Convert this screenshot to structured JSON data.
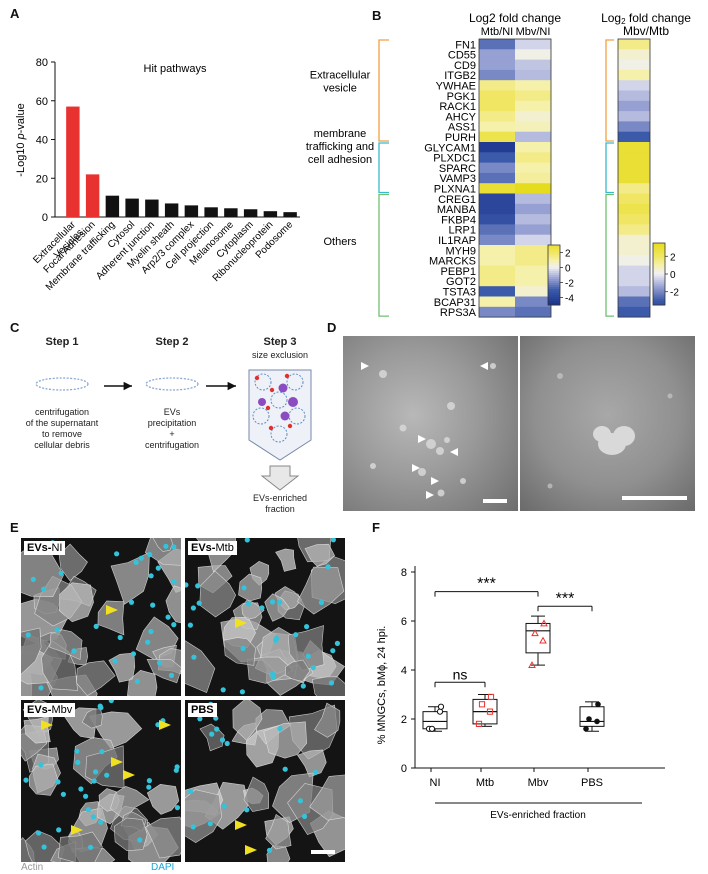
{
  "panels": {
    "A": "A",
    "B": "B",
    "C": "C",
    "D": "D",
    "E": "E",
    "F": "F"
  },
  "chart_a": {
    "type": "bar",
    "title": "Hit pathways",
    "ylabel_prefix": "-Log10 ",
    "ylabel_italic": "p",
    "ylabel_suffix": "-value",
    "ylim": [
      0,
      80
    ],
    "yticks": [
      "0",
      "20",
      "40",
      "60",
      "80"
    ],
    "categories": [
      "Extracellular Vesicles",
      "Focal Adhesion",
      "Membrane trafficking",
      "Cytosol",
      "Adherent junction",
      "Myelin sheath",
      "Arp2/3 complex",
      "Cell projection",
      "Melanosome",
      "Cytoplasm",
      "Ribonucleoprotein",
      "Podosome"
    ],
    "values": [
      57,
      22,
      11,
      9.5,
      9,
      7,
      6,
      5,
      4.5,
      4,
      3,
      2.5
    ],
    "colors": [
      "#e8322f",
      "#e8322f",
      "#111111",
      "#111111",
      "#111111",
      "#111111",
      "#111111",
      "#111111",
      "#111111",
      "#111111",
      "#111111",
      "#111111"
    ]
  },
  "heatmap_b": {
    "title": "Log2 fold change",
    "col_labels": [
      "Mtb/NI",
      "Mbv/NI"
    ],
    "title2_a": "Log",
    "title2_b": "2",
    "title2_c": " fold change",
    "title2_sub": "Mbv/Mtb",
    "genes": [
      "FN1",
      "CD55",
      "CD9",
      "ITGB2",
      "YWHAE",
      "PGK1",
      "RACK1",
      "AHCY",
      "ASS1",
      "PURH",
      "GLYCAM1",
      "PLXDC1",
      "SPARC",
      "VAMP3",
      "PLXNA1",
      "CREG1",
      "MANBA",
      "FKBP4",
      "LRP1",
      "IL1RAP",
      "MYH9",
      "MARCKS",
      "PEBP1",
      "GOT2",
      "TSTA3",
      "BCAP31",
      "RPS3A"
    ],
    "groups": [
      {
        "label_lines": [
          "Extracellular",
          "vesicle"
        ],
        "color": "#f0a040",
        "start": 0,
        "end": 9
      },
      {
        "label_lines": [
          "membrane",
          "trafficking and",
          "cell adhesion"
        ],
        "color": "#3ab8d0",
        "start": 10,
        "end": 14
      },
      {
        "label_lines": [
          "Others"
        ],
        "color": "#70c070",
        "start": 15,
        "end": 26
      }
    ],
    "mtb_ni": [
      -2.5,
      -1.5,
      -1.5,
      -2.0,
      1.5,
      2.0,
      2.0,
      1.5,
      1.0,
      2.5,
      -4.5,
      -3.0,
      -2.0,
      -2.5,
      3.0,
      -4.0,
      -4.0,
      -3.5,
      -2.5,
      -2.0,
      1.0,
      1.0,
      1.5,
      1.5,
      -3.0,
      1.0,
      -2.0
    ],
    "mbv_ni": [
      -0.5,
      0.2,
      -0.8,
      -1.0,
      1.0,
      1.5,
      1.0,
      0.5,
      0.8,
      -1.0,
      1.0,
      1.5,
      1.0,
      1.2,
      3.5,
      -1.0,
      -1.5,
      -1.0,
      -1.5,
      -0.5,
      1.5,
      1.5,
      1.0,
      1.0,
      0.5,
      -2.0,
      -2.5
    ],
    "mbv_mtb": [
      1.5,
      0.5,
      0.2,
      1.0,
      -0.5,
      -1.0,
      -1.5,
      -1.0,
      -2.0,
      -3.0,
      3.0,
      3.0,
      3.0,
      3.0,
      1.5,
      2.0,
      2.5,
      2.0,
      1.5,
      0.5,
      0.5,
      0.2,
      -0.5,
      -0.5,
      -1.0,
      -2.5,
      -3.0
    ],
    "scale1": {
      "ticks": [
        "2",
        "0",
        "-2",
        "-4"
      ],
      "values": [
        2,
        0,
        -2,
        -4
      ],
      "min": -5,
      "max": 3
    },
    "scale2": {
      "ticks": [
        "2",
        "0",
        "-2"
      ],
      "values": [
        2,
        0,
        -2
      ],
      "min": -3.5,
      "max": 3.5
    }
  },
  "schematic_c": {
    "steps": [
      {
        "title": "Step 1",
        "lines": [
          "centrifugation",
          "of the supernatant",
          "to remove",
          "cellular debris"
        ]
      },
      {
        "title": "Step 2",
        "lines": [
          "EVs",
          "precipitation",
          "+",
          "centrifugation"
        ]
      },
      {
        "title": "Step 3",
        "lines": [
          "size exclusion"
        ]
      }
    ],
    "output_lines": [
      "EVs-enriched",
      "fraction"
    ]
  },
  "micro_d": {
    "panels": 2
  },
  "micro_e": {
    "labels": [
      {
        "bold": "EVs-",
        "rest": "NI"
      },
      {
        "bold": "EVs-",
        "rest": "Mtb"
      },
      {
        "bold": "EVs-",
        "rest": "Mbv"
      },
      {
        "bold": "PBS",
        "rest": ""
      }
    ],
    "legend_actin": "Actin",
    "legend_dapi": "DAPI"
  },
  "chart_f": {
    "type": "box",
    "ylabel": "% MNGCs, bMϕ, 24 hpi.",
    "ylim": [
      0,
      8
    ],
    "yticks": [
      "0",
      "2",
      "4",
      "6",
      "8"
    ],
    "categories": [
      "NI",
      "Mtb",
      "Mbv",
      "PBS"
    ],
    "group_label": "EVs-enriched fraction",
    "series": [
      {
        "category": "NI",
        "points": [
          1.6,
          2.3,
          1.6,
          2.5
        ],
        "q1": 1.6,
        "median": 1.9,
        "q3": 2.3,
        "min": 1.5,
        "max": 2.5,
        "marker": "circle",
        "color": "#111111"
      },
      {
        "category": "Mtb",
        "points": [
          1.8,
          2.3,
          2.6,
          2.9
        ],
        "q1": 1.8,
        "median": 2.3,
        "q3": 2.8,
        "min": 1.7,
        "max": 3.0,
        "marker": "square",
        "color": "#e8322f"
      },
      {
        "category": "Mbv",
        "points": [
          4.2,
          5.2,
          5.5,
          5.9
        ],
        "q1": 4.7,
        "median": 5.6,
        "q3": 5.9,
        "min": 4.2,
        "max": 6.2,
        "marker": "triangle",
        "color": "#e8322f"
      },
      {
        "category": "PBS",
        "points": [
          1.6,
          1.9,
          2.0,
          2.6
        ],
        "q1": 1.7,
        "median": 1.9,
        "q3": 2.5,
        "min": 1.5,
        "max": 2.7,
        "marker": "filled",
        "color": "#111111"
      }
    ],
    "significance": [
      {
        "from": 0,
        "to": 2,
        "label": "***",
        "level": 7.2
      },
      {
        "from": 2,
        "to": 3,
        "label": "***",
        "level": 6.6
      },
      {
        "from": 0,
        "to": 1,
        "label": "ns",
        "level": 3.5
      }
    ]
  }
}
